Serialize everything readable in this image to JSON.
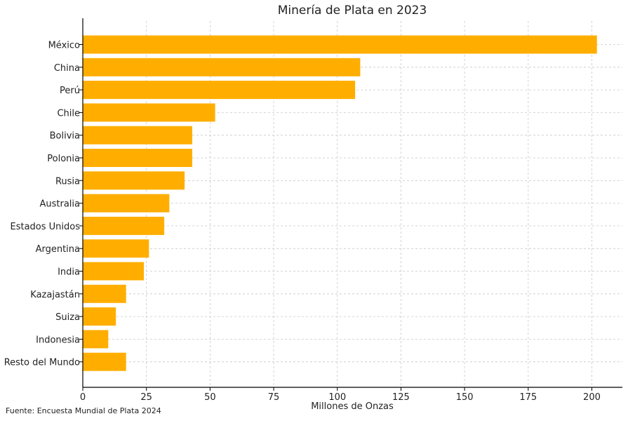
{
  "chart_data": {
    "type": "bar",
    "orientation": "horizontal",
    "title": "Minería de Plata en 2023",
    "xlabel": "Millones de Onzas",
    "ylabel": "",
    "xlim": [
      0,
      212
    ],
    "xticks": [
      0,
      25,
      50,
      75,
      100,
      125,
      150,
      175,
      200
    ],
    "categories": [
      "México",
      "China",
      "Perú",
      "Chile",
      "Bolivia",
      "Polonia",
      "Rusia",
      "Australia",
      "Estados Unidos",
      "Argentina",
      "India",
      "Kazajastán",
      "Suiza",
      "Indonesia",
      "Resto del Mundo"
    ],
    "values": [
      202,
      109,
      107,
      52,
      43,
      43,
      40,
      34,
      32,
      26,
      24,
      17,
      13,
      10,
      17
    ],
    "bar_color": "#FFAE00",
    "grid": true,
    "legend": "none"
  },
  "footer": {
    "source": "Fuente: Encuesta Mundial de Plata 2024"
  }
}
